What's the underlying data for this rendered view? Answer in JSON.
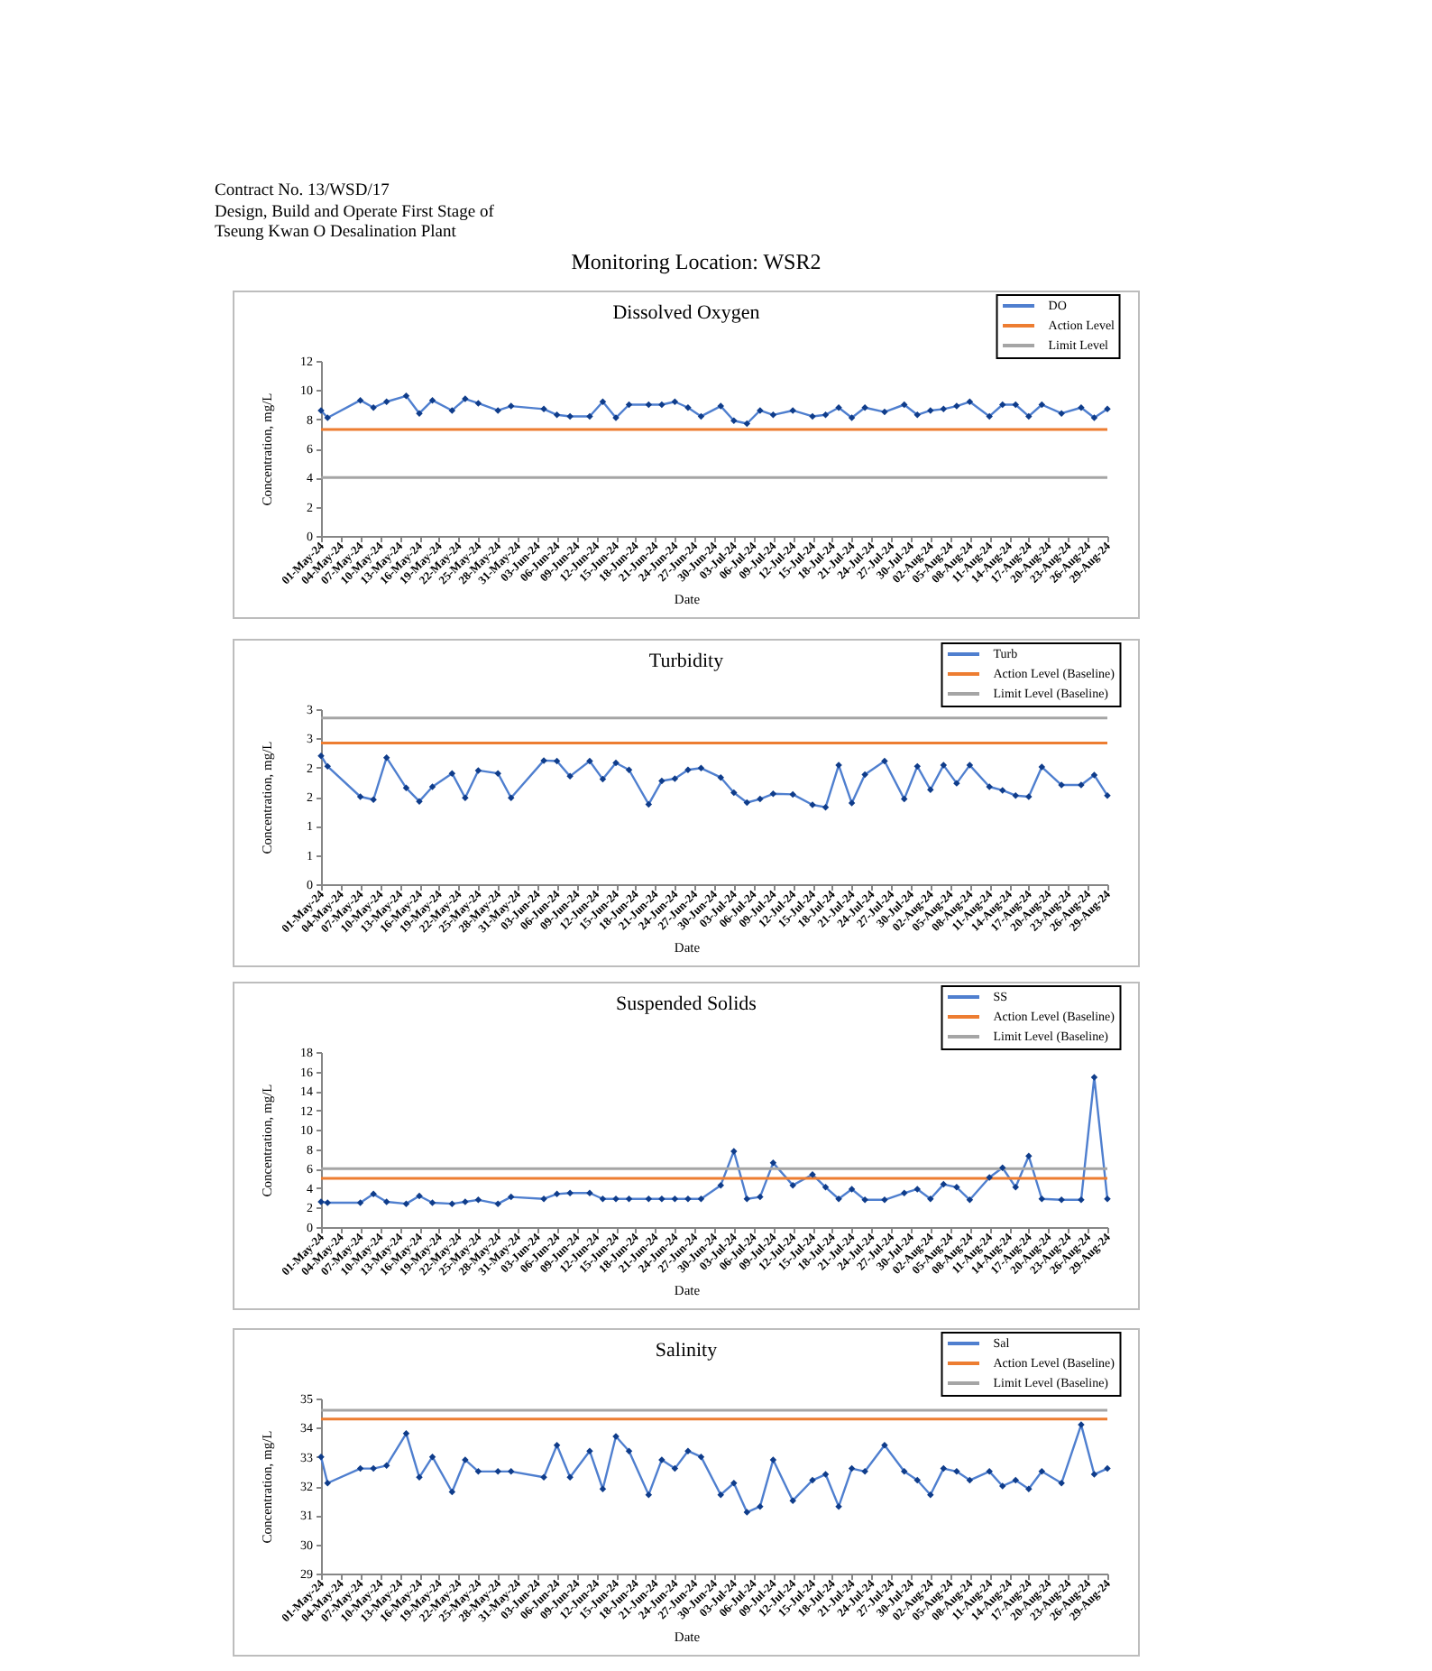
{
  "chart_data": [
    {
      "type": "other",
      "title": "Monitoring Location: WSR2",
      "annotations": [
        "Contract No. 13/WSD/17",
        "Design, Build and Operate First Stage of",
        "Tseung Kwan O Desalination Plant"
      ]
    },
    {
      "type": "line",
      "title": "Dissolved Oxygen",
      "xlabel": "Date",
      "ylabel": "Concentration, mg/L",
      "x": [
        "--05-01",
        "--05-02",
        "--05-07",
        "--05-09",
        "--05-11",
        "--05-14",
        "--05-16",
        "--05-18",
        "--05-21",
        "--05-23",
        "--05-25",
        "--05-28",
        "--05-30",
        "--06-04",
        "--06-06",
        "--06-08",
        "--06-11",
        "--06-13",
        "--06-15",
        "--06-17",
        "--06-20",
        "--06-22",
        "--06-24",
        "--06-26",
        "--06-28",
        "--07-01",
        "--07-03",
        "--07-05",
        "--07-07",
        "--07-09",
        "--07-12",
        "--07-15",
        "--07-17",
        "--07-19",
        "--07-21",
        "--07-23",
        "--07-26",
        "--07-29",
        "--07-31",
        "--08-02",
        "--08-04",
        "--08-06",
        "--08-08",
        "--08-11",
        "--08-13",
        "--08-15",
        "--08-17",
        "--08-19",
        "--08-22",
        "--08-25",
        "--08-27",
        "--08-29"
      ],
      "series": [
        {
          "name": "DO",
          "color": "#4f7fcf",
          "values": [
            8.6,
            8.1,
            9.3,
            8.8,
            9.2,
            9.6,
            8.4,
            9.3,
            8.6,
            9.4,
            9.1,
            8.6,
            8.9,
            8.7,
            8.3,
            8.2,
            8.2,
            9.2,
            8.1,
            9.0,
            9.0,
            9.0,
            9.2,
            8.8,
            8.2,
            8.9,
            7.9,
            7.7,
            8.6,
            8.3,
            8.6,
            8.2,
            8.3,
            8.8,
            8.1,
            8.8,
            8.5,
            9.0,
            8.3,
            8.6,
            8.7,
            8.9,
            9.2,
            8.2,
            9.0,
            9.0,
            8.2,
            9.0,
            8.4,
            8.8,
            8.1,
            8.7
          ]
        }
      ],
      "ref_lines": [
        {
          "axis": "y",
          "value": 7.3,
          "label": "Action Level",
          "color": "#ed7d31"
        },
        {
          "axis": "y",
          "value": 4,
          "label": "Limit Level",
          "color": "#a5a5a5"
        }
      ],
      "xlim": [
        "--05-01",
        "--08-29"
      ],
      "xticks": [
        {
          "value": "--05-01",
          "label": "01-May-24"
        },
        {
          "value": "--05-04",
          "label": "04-May-24"
        },
        {
          "value": "--05-07",
          "label": "07-May-24"
        },
        {
          "value": "--05-10",
          "label": "10-May-24"
        },
        {
          "value": "--05-13",
          "label": "13-May-24"
        },
        {
          "value": "--05-16",
          "label": "16-May-24"
        },
        {
          "value": "--05-19",
          "label": "19-May-24"
        },
        {
          "value": "--05-22",
          "label": "22-May-24"
        },
        {
          "value": "--05-25",
          "label": "25-May-24"
        },
        {
          "value": "--05-28",
          "label": "28-May-24"
        },
        {
          "value": "--05-31",
          "label": "31-May-24"
        },
        {
          "value": "--06-03",
          "label": "03-Jun-24"
        },
        {
          "value": "--06-06",
          "label": "06-Jun-24"
        },
        {
          "value": "--06-09",
          "label": "09-Jun-24"
        },
        {
          "value": "--06-12",
          "label": "12-Jun-24"
        },
        {
          "value": "--06-15",
          "label": "15-Jun-24"
        },
        {
          "value": "--06-18",
          "label": "18-Jun-24"
        },
        {
          "value": "--06-21",
          "label": "21-Jun-24"
        },
        {
          "value": "--06-24",
          "label": "24-Jun-24"
        },
        {
          "value": "--06-27",
          "label": "27-Jun-24"
        },
        {
          "value": "--06-30",
          "label": "30-Jun-24"
        },
        {
          "value": "--07-03",
          "label": "03-Jul-24"
        },
        {
          "value": "--07-06",
          "label": "06-Jul-24"
        },
        {
          "value": "--07-09",
          "label": "09-Jul-24"
        },
        {
          "value": "--07-12",
          "label": "12-Jul-24"
        },
        {
          "value": "--07-15",
          "label": "15-Jul-24"
        },
        {
          "value": "--07-18",
          "label": "18-Jul-24"
        },
        {
          "value": "--07-21",
          "label": "21-Jul-24"
        },
        {
          "value": "--07-24",
          "label": "24-Jul-24"
        },
        {
          "value": "--07-27",
          "label": "27-Jul-24"
        },
        {
          "value": "--07-30",
          "label": "30-Jul-24"
        },
        {
          "value": "--08-02",
          "label": "02-Aug-24"
        },
        {
          "value": "--08-05",
          "label": "05-Aug-24"
        },
        {
          "value": "--08-08",
          "label": "08-Aug-24"
        },
        {
          "value": "--08-11",
          "label": "11-Aug-24"
        },
        {
          "value": "--08-14",
          "label": "14-Aug-24"
        },
        {
          "value": "--08-17",
          "label": "17-Aug-24"
        },
        {
          "value": "--08-20",
          "label": "20-Aug-24"
        },
        {
          "value": "--08-23",
          "label": "23-Aug-24"
        },
        {
          "value": "--08-26",
          "label": "26-Aug-24"
        },
        {
          "value": "--08-29",
          "label": "29-Aug-24"
        }
      ],
      "ylim": [
        0,
        12
      ],
      "yticks": [
        0,
        2,
        4,
        6,
        8,
        10,
        12
      ],
      "legend": "top right",
      "marker": "diamond"
    },
    {
      "type": "line",
      "title": "Turbidity",
      "xlabel": "Date",
      "ylabel": "Concentration, mg/L",
      "x": [
        "--05-01",
        "--05-02",
        "--05-07",
        "--05-09",
        "--05-11",
        "--05-14",
        "--05-16",
        "--05-18",
        "--05-21",
        "--05-23",
        "--05-25",
        "--05-28",
        "--05-30",
        "--06-04",
        "--06-06",
        "--06-08",
        "--06-11",
        "--06-13",
        "--06-15",
        "--06-17",
        "--06-20",
        "--06-22",
        "--06-24",
        "--06-26",
        "--06-28",
        "--07-01",
        "--07-03",
        "--07-05",
        "--07-07",
        "--07-09",
        "--07-12",
        "--07-15",
        "--07-17",
        "--07-19",
        "--07-21",
        "--07-23",
        "--07-26",
        "--07-29",
        "--07-31",
        "--08-02",
        "--08-04",
        "--08-06",
        "--08-08",
        "--08-11",
        "--08-13",
        "--08-15",
        "--08-17",
        "--08-19",
        "--08-22",
        "--08-25",
        "--08-27",
        "--08-29"
      ],
      "series": [
        {
          "name": "Turb",
          "color": "#4f7fcf",
          "values": [
            2.2,
            2.02,
            1.5,
            1.45,
            2.17,
            1.65,
            1.42,
            1.67,
            1.9,
            1.48,
            1.95,
            1.9,
            1.48,
            2.12,
            2.11,
            1.85,
            2.11,
            1.8,
            2.08,
            1.96,
            1.37,
            1.77,
            1.81,
            1.96,
            1.99,
            1.83,
            1.57,
            1.4,
            1.46,
            1.55,
            1.54,
            1.36,
            1.32,
            2.04,
            1.39,
            1.88,
            2.11,
            1.46,
            2.02,
            1.62,
            2.04,
            1.73,
            2.04,
            1.67,
            1.61,
            1.52,
            1.5,
            2.01,
            1.7,
            1.7,
            1.87,
            1.52
          ]
        }
      ],
      "ref_lines": [
        {
          "axis": "y",
          "value": 2.42,
          "label": "Action Level (Baseline)",
          "color": "#ed7d31"
        },
        {
          "axis": "y",
          "value": 2.85,
          "label": "Limit Level (Baseline)",
          "color": "#a5a5a5"
        }
      ],
      "xlim": [
        "--05-01",
        "--08-29"
      ],
      "xticks": [
        {
          "value": "--05-01",
          "label": "01-May-24"
        },
        {
          "value": "--05-04",
          "label": "04-May-24"
        },
        {
          "value": "--05-07",
          "label": "07-May-24"
        },
        {
          "value": "--05-10",
          "label": "10-May-24"
        },
        {
          "value": "--05-13",
          "label": "13-May-24"
        },
        {
          "value": "--05-16",
          "label": "16-May-24"
        },
        {
          "value": "--05-19",
          "label": "19-May-24"
        },
        {
          "value": "--05-22",
          "label": "22-May-24"
        },
        {
          "value": "--05-25",
          "label": "25-May-24"
        },
        {
          "value": "--05-28",
          "label": "28-May-24"
        },
        {
          "value": "--05-31",
          "label": "31-May-24"
        },
        {
          "value": "--06-03",
          "label": "03-Jun-24"
        },
        {
          "value": "--06-06",
          "label": "06-Jun-24"
        },
        {
          "value": "--06-09",
          "label": "09-Jun-24"
        },
        {
          "value": "--06-12",
          "label": "12-Jun-24"
        },
        {
          "value": "--06-15",
          "label": "15-Jun-24"
        },
        {
          "value": "--06-18",
          "label": "18-Jun-24"
        },
        {
          "value": "--06-21",
          "label": "21-Jun-24"
        },
        {
          "value": "--06-24",
          "label": "24-Jun-24"
        },
        {
          "value": "--06-27",
          "label": "27-Jun-24"
        },
        {
          "value": "--06-30",
          "label": "30-Jun-24"
        },
        {
          "value": "--07-03",
          "label": "03-Jul-24"
        },
        {
          "value": "--07-06",
          "label": "06-Jul-24"
        },
        {
          "value": "--07-09",
          "label": "09-Jul-24"
        },
        {
          "value": "--07-12",
          "label": "12-Jul-24"
        },
        {
          "value": "--07-15",
          "label": "15-Jul-24"
        },
        {
          "value": "--07-18",
          "label": "18-Jul-24"
        },
        {
          "value": "--07-21",
          "label": "21-Jul-24"
        },
        {
          "value": "--07-24",
          "label": "24-Jul-24"
        },
        {
          "value": "--07-27",
          "label": "27-Jul-24"
        },
        {
          "value": "--07-30",
          "label": "30-Jul-24"
        },
        {
          "value": "--08-02",
          "label": "02-Aug-24"
        },
        {
          "value": "--08-05",
          "label": "05-Aug-24"
        },
        {
          "value": "--08-08",
          "label": "08-Aug-24"
        },
        {
          "value": "--08-11",
          "label": "11-Aug-24"
        },
        {
          "value": "--08-14",
          "label": "14-Aug-24"
        },
        {
          "value": "--08-17",
          "label": "17-Aug-24"
        },
        {
          "value": "--08-20",
          "label": "20-Aug-24"
        },
        {
          "value": "--08-23",
          "label": "23-Aug-24"
        },
        {
          "value": "--08-26",
          "label": "26-Aug-24"
        },
        {
          "value": "--08-29",
          "label": "29-Aug-24"
        }
      ],
      "ylim": [
        0,
        3
      ],
      "yticks": [
        0,
        {
          "value": 0.5,
          "label": "1"
        },
        1,
        {
          "value": 1.5,
          "label": "2"
        },
        2,
        {
          "value": 2.5,
          "label": "3"
        },
        3
      ],
      "legend": "top right",
      "marker": "diamond"
    },
    {
      "type": "line",
      "title": "Suspended Solids",
      "xlabel": "Date",
      "ylabel": "Concentration, mg/L",
      "x": [
        "--05-01",
        "--05-02",
        "--05-07",
        "--05-09",
        "--05-11",
        "--05-14",
        "--05-16",
        "--05-18",
        "--05-21",
        "--05-23",
        "--05-25",
        "--05-28",
        "--05-30",
        "--06-04",
        "--06-06",
        "--06-08",
        "--06-11",
        "--06-13",
        "--06-15",
        "--06-17",
        "--06-20",
        "--06-22",
        "--06-24",
        "--06-26",
        "--06-28",
        "--07-01",
        "--07-03",
        "--07-05",
        "--07-07",
        "--07-09",
        "--07-12",
        "--07-15",
        "--07-17",
        "--07-19",
        "--07-21",
        "--07-23",
        "--07-26",
        "--07-29",
        "--07-31",
        "--08-02",
        "--08-04",
        "--08-06",
        "--08-08",
        "--08-11",
        "--08-13",
        "--08-15",
        "--08-17",
        "--08-19",
        "--08-22",
        "--08-25",
        "--08-27",
        "--08-29"
      ],
      "series": [
        {
          "name": "SS",
          "color": "#4f7fcf",
          "values": [
            2.6,
            2.5,
            2.5,
            3.4,
            2.6,
            2.4,
            3.2,
            2.5,
            2.4,
            2.6,
            2.8,
            2.4,
            3.1,
            2.9,
            3.4,
            3.5,
            3.5,
            2.9,
            2.9,
            2.9,
            2.9,
            2.9,
            2.9,
            2.9,
            2.9,
            4.3,
            7.8,
            2.9,
            3.1,
            6.6,
            4.3,
            5.4,
            4.1,
            2.9,
            3.9,
            2.8,
            2.8,
            3.5,
            3.9,
            2.9,
            4.4,
            4.1,
            2.8,
            5.1,
            6.1,
            4.1,
            7.3,
            2.9,
            2.8,
            2.8,
            15.4,
            2.9
          ]
        }
      ],
      "ref_lines": [
        {
          "axis": "y",
          "value": 5.0,
          "label": "Action Level (Baseline)",
          "color": "#ed7d31"
        },
        {
          "axis": "y",
          "value": 6.0,
          "label": "Limit Level (Baseline)",
          "color": "#a5a5a5"
        }
      ],
      "xlim": [
        "--05-01",
        "--08-29"
      ],
      "xticks": [
        {
          "value": "--05-01",
          "label": "01-May-24"
        },
        {
          "value": "--05-04",
          "label": "04-May-24"
        },
        {
          "value": "--05-07",
          "label": "07-May-24"
        },
        {
          "value": "--05-10",
          "label": "10-May-24"
        },
        {
          "value": "--05-13",
          "label": "13-May-24"
        },
        {
          "value": "--05-16",
          "label": "16-May-24"
        },
        {
          "value": "--05-19",
          "label": "19-May-24"
        },
        {
          "value": "--05-22",
          "label": "22-May-24"
        },
        {
          "value": "--05-25",
          "label": "25-May-24"
        },
        {
          "value": "--05-28",
          "label": "28-May-24"
        },
        {
          "value": "--05-31",
          "label": "31-May-24"
        },
        {
          "value": "--06-03",
          "label": "03-Jun-24"
        },
        {
          "value": "--06-06",
          "label": "06-Jun-24"
        },
        {
          "value": "--06-09",
          "label": "09-Jun-24"
        },
        {
          "value": "--06-12",
          "label": "12-Jun-24"
        },
        {
          "value": "--06-15",
          "label": "15-Jun-24"
        },
        {
          "value": "--06-18",
          "label": "18-Jun-24"
        },
        {
          "value": "--06-21",
          "label": "21-Jun-24"
        },
        {
          "value": "--06-24",
          "label": "24-Jun-24"
        },
        {
          "value": "--06-27",
          "label": "27-Jun-24"
        },
        {
          "value": "--06-30",
          "label": "30-Jun-24"
        },
        {
          "value": "--07-03",
          "label": "03-Jul-24"
        },
        {
          "value": "--07-06",
          "label": "06-Jul-24"
        },
        {
          "value": "--07-09",
          "label": "09-Jul-24"
        },
        {
          "value": "--07-12",
          "label": "12-Jul-24"
        },
        {
          "value": "--07-15",
          "label": "15-Jul-24"
        },
        {
          "value": "--07-18",
          "label": "18-Jul-24"
        },
        {
          "value": "--07-21",
          "label": "21-Jul-24"
        },
        {
          "value": "--07-24",
          "label": "24-Jul-24"
        },
        {
          "value": "--07-27",
          "label": "27-Jul-24"
        },
        {
          "value": "--07-30",
          "label": "30-Jul-24"
        },
        {
          "value": "--08-02",
          "label": "02-Aug-24"
        },
        {
          "value": "--08-05",
          "label": "05-Aug-24"
        },
        {
          "value": "--08-08",
          "label": "08-Aug-24"
        },
        {
          "value": "--08-11",
          "label": "11-Aug-24"
        },
        {
          "value": "--08-14",
          "label": "14-Aug-24"
        },
        {
          "value": "--08-17",
          "label": "17-Aug-24"
        },
        {
          "value": "--08-20",
          "label": "20-Aug-24"
        },
        {
          "value": "--08-23",
          "label": "23-Aug-24"
        },
        {
          "value": "--08-26",
          "label": "26-Aug-24"
        },
        {
          "value": "--08-29",
          "label": "29-Aug-24"
        }
      ],
      "ylim": [
        0,
        18
      ],
      "yticks": [
        0,
        2,
        4,
        6,
        8,
        10,
        12,
        14,
        16,
        18
      ],
      "legend": "top right",
      "marker": "diamond"
    },
    {
      "type": "line",
      "title": "Salinity",
      "xlabel": "Date",
      "ylabel": "Concentration, mg/L",
      "x": [
        "--05-01",
        "--05-02",
        "--05-07",
        "--05-09",
        "--05-11",
        "--05-14",
        "--05-16",
        "--05-18",
        "--05-21",
        "--05-23",
        "--05-25",
        "--05-28",
        "--05-30",
        "--06-04",
        "--06-06",
        "--06-08",
        "--06-11",
        "--06-13",
        "--06-15",
        "--06-17",
        "--06-20",
        "--06-22",
        "--06-24",
        "--06-26",
        "--06-28",
        "--07-01",
        "--07-03",
        "--07-05",
        "--07-07",
        "--07-09",
        "--07-12",
        "--07-15",
        "--07-17",
        "--07-19",
        "--07-21",
        "--07-23",
        "--07-26",
        "--07-29",
        "--07-31",
        "--08-02",
        "--08-04",
        "--08-06",
        "--08-08",
        "--08-11",
        "--08-13",
        "--08-15",
        "--08-17",
        "--08-19",
        "--08-22",
        "--08-25",
        "--08-27",
        "--08-29"
      ],
      "series": [
        {
          "name": "Sal",
          "color": "#4f7fcf",
          "values": [
            33.0,
            32.1,
            32.6,
            32.6,
            32.7,
            33.8,
            32.3,
            33.0,
            31.8,
            32.9,
            32.5,
            32.5,
            32.5,
            32.3,
            33.4,
            32.3,
            33.2,
            31.9,
            33.7,
            33.2,
            31.7,
            32.9,
            32.6,
            33.2,
            33.0,
            31.7,
            32.1,
            31.1,
            31.3,
            32.9,
            31.5,
            32.2,
            32.4,
            31.3,
            32.6,
            32.5,
            33.4,
            32.5,
            32.2,
            31.7,
            32.6,
            32.5,
            32.2,
            32.5,
            32.0,
            32.2,
            31.9,
            32.5,
            32.1,
            34.1,
            32.4,
            32.6
          ]
        }
      ],
      "ref_lines": [
        {
          "axis": "y",
          "value": 34.3,
          "label": "Action Level (Baseline)",
          "color": "#ed7d31"
        },
        {
          "axis": "y",
          "value": 34.6,
          "label": "Limit Level (Baseline)",
          "color": "#a5a5a5"
        }
      ],
      "xlim": [
        "--05-01",
        "--08-29"
      ],
      "xticks": [
        {
          "value": "--05-01",
          "label": "01-May-24"
        },
        {
          "value": "--05-04",
          "label": "04-May-24"
        },
        {
          "value": "--05-07",
          "label": "07-May-24"
        },
        {
          "value": "--05-10",
          "label": "10-May-24"
        },
        {
          "value": "--05-13",
          "label": "13-May-24"
        },
        {
          "value": "--05-16",
          "label": "16-May-24"
        },
        {
          "value": "--05-19",
          "label": "19-May-24"
        },
        {
          "value": "--05-22",
          "label": "22-May-24"
        },
        {
          "value": "--05-25",
          "label": "25-May-24"
        },
        {
          "value": "--05-28",
          "label": "28-May-24"
        },
        {
          "value": "--05-31",
          "label": "31-May-24"
        },
        {
          "value": "--06-03",
          "label": "03-Jun-24"
        },
        {
          "value": "--06-06",
          "label": "06-Jun-24"
        },
        {
          "value": "--06-09",
          "label": "09-Jun-24"
        },
        {
          "value": "--06-12",
          "label": "12-Jun-24"
        },
        {
          "value": "--06-15",
          "label": "15-Jun-24"
        },
        {
          "value": "--06-18",
          "label": "18-Jun-24"
        },
        {
          "value": "--06-21",
          "label": "21-Jun-24"
        },
        {
          "value": "--06-24",
          "label": "24-Jun-24"
        },
        {
          "value": "--06-27",
          "label": "27-Jun-24"
        },
        {
          "value": "--06-30",
          "label": "30-Jun-24"
        },
        {
          "value": "--07-03",
          "label": "03-Jul-24"
        },
        {
          "value": "--07-06",
          "label": "06-Jul-24"
        },
        {
          "value": "--07-09",
          "label": "09-Jul-24"
        },
        {
          "value": "--07-12",
          "label": "12-Jul-24"
        },
        {
          "value": "--07-15",
          "label": "15-Jul-24"
        },
        {
          "value": "--07-18",
          "label": "18-Jul-24"
        },
        {
          "value": "--07-21",
          "label": "21-Jul-24"
        },
        {
          "value": "--07-24",
          "label": "24-Jul-24"
        },
        {
          "value": "--07-27",
          "label": "27-Jul-24"
        },
        {
          "value": "--07-30",
          "label": "30-Jul-24"
        },
        {
          "value": "--08-02",
          "label": "02-Aug-24"
        },
        {
          "value": "--08-05",
          "label": "05-Aug-24"
        },
        {
          "value": "--08-08",
          "label": "08-Aug-24"
        },
        {
          "value": "--08-11",
          "label": "11-Aug-24"
        },
        {
          "value": "--08-14",
          "label": "14-Aug-24"
        },
        {
          "value": "--08-17",
          "label": "17-Aug-24"
        },
        {
          "value": "--08-20",
          "label": "20-Aug-24"
        },
        {
          "value": "--08-23",
          "label": "23-Aug-24"
        },
        {
          "value": "--08-26",
          "label": "26-Aug-24"
        },
        {
          "value": "--08-29",
          "label": "29-Aug-24"
        }
      ],
      "ylim": [
        29,
        35
      ],
      "yticks": [
        29,
        30,
        31,
        32,
        33,
        34,
        35
      ],
      "legend": "top right",
      "marker": "diamond"
    }
  ]
}
